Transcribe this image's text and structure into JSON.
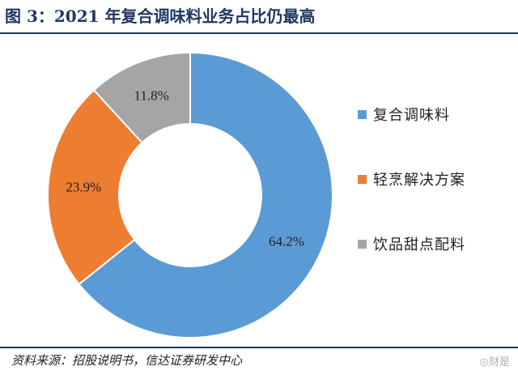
{
  "source_text": "资料来源：招股说明书，信达证券研发中心",
  "watermark_text": "◎财是",
  "chart_data": {
    "type": "pie",
    "donut": true,
    "title": "图 3：2021 年复合调味料业务占比仍最高",
    "categories": [
      "复合调味料",
      "轻烹解决方案",
      "饮品甜点配料"
    ],
    "values": [
      64.2,
      23.9,
      11.8
    ],
    "value_labels": [
      "64.2%",
      "23.9%",
      "11.8%"
    ],
    "colors": [
      "#5b9bd5",
      "#ed7d31",
      "#a5a5a5"
    ],
    "unit": "%",
    "legend_position": "right"
  }
}
